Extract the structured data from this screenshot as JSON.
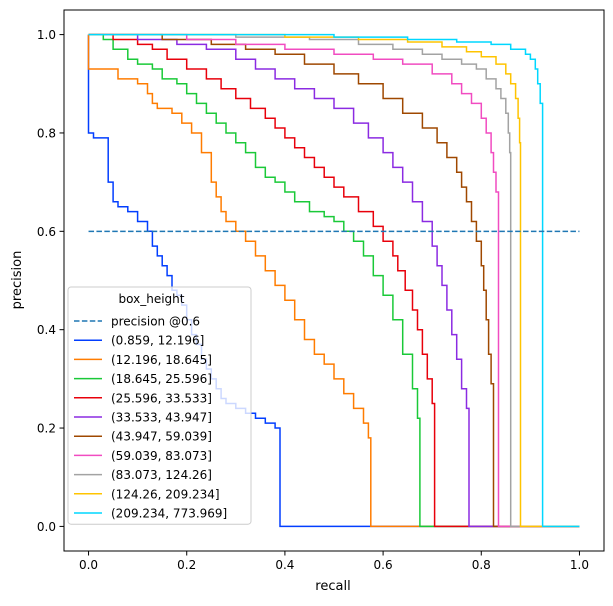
{
  "chart_data": {
    "type": "line",
    "title": "",
    "xlabel": "recall",
    "ylabel": "precision",
    "xlim": [
      -0.05,
      1.05
    ],
    "ylim": [
      -0.05,
      1.05
    ],
    "xticks": [
      "0.0",
      "0.2",
      "0.4",
      "0.6",
      "0.8",
      "1.0"
    ],
    "yticks": [
      "0.0",
      "0.2",
      "0.4",
      "0.6",
      "0.8",
      "1.0"
    ],
    "grid": false,
    "legend": {
      "title": "box_height",
      "placement": "lower-left"
    },
    "reference_line": {
      "name": "precision @0.6",
      "y": 0.6,
      "x_range": [
        0,
        1
      ],
      "color": "#1f77b4",
      "style": "dashed"
    },
    "series": [
      {
        "name": "(0.859, 12.196]",
        "color": "#023eff",
        "points": [
          [
            0,
            1.0
          ],
          [
            0,
            0.8
          ],
          [
            0.01,
            0.8
          ],
          [
            0.01,
            0.79
          ],
          [
            0.04,
            0.79
          ],
          [
            0.04,
            0.7
          ],
          [
            0.05,
            0.7
          ],
          [
            0.05,
            0.66
          ],
          [
            0.06,
            0.66
          ],
          [
            0.06,
            0.65
          ],
          [
            0.08,
            0.64
          ],
          [
            0.1,
            0.62
          ],
          [
            0.12,
            0.6
          ],
          [
            0.13,
            0.57
          ],
          [
            0.14,
            0.55
          ],
          [
            0.15,
            0.53
          ],
          [
            0.16,
            0.51
          ],
          [
            0.17,
            0.48
          ],
          [
            0.18,
            0.47
          ],
          [
            0.19,
            0.45
          ],
          [
            0.2,
            0.42
          ],
          [
            0.21,
            0.39
          ],
          [
            0.22,
            0.37
          ],
          [
            0.23,
            0.34
          ],
          [
            0.24,
            0.32
          ],
          [
            0.25,
            0.3
          ],
          [
            0.26,
            0.28
          ],
          [
            0.27,
            0.26
          ],
          [
            0.28,
            0.25
          ],
          [
            0.3,
            0.24
          ],
          [
            0.32,
            0.23
          ],
          [
            0.34,
            0.22
          ],
          [
            0.36,
            0.21
          ],
          [
            0.38,
            0.2
          ],
          [
            0.39,
            0.19
          ],
          [
            0.39,
            0.0
          ],
          [
            1.0,
            0.0
          ]
        ]
      },
      {
        "name": "(12.196, 18.645]",
        "color": "#ff7c00",
        "points": [
          [
            0,
            1.0
          ],
          [
            0,
            0.93
          ],
          [
            0.06,
            0.93
          ],
          [
            0.06,
            0.91
          ],
          [
            0.1,
            0.9
          ],
          [
            0.12,
            0.88
          ],
          [
            0.13,
            0.86
          ],
          [
            0.14,
            0.85
          ],
          [
            0.17,
            0.84
          ],
          [
            0.19,
            0.82
          ],
          [
            0.21,
            0.8
          ],
          [
            0.23,
            0.76
          ],
          [
            0.25,
            0.7
          ],
          [
            0.26,
            0.67
          ],
          [
            0.27,
            0.64
          ],
          [
            0.28,
            0.62
          ],
          [
            0.3,
            0.6
          ],
          [
            0.32,
            0.58
          ],
          [
            0.34,
            0.55
          ],
          [
            0.36,
            0.52
          ],
          [
            0.38,
            0.49
          ],
          [
            0.4,
            0.46
          ],
          [
            0.42,
            0.42
          ],
          [
            0.44,
            0.38
          ],
          [
            0.46,
            0.35
          ],
          [
            0.48,
            0.33
          ],
          [
            0.5,
            0.3
          ],
          [
            0.52,
            0.27
          ],
          [
            0.54,
            0.24
          ],
          [
            0.56,
            0.21
          ],
          [
            0.57,
            0.18
          ],
          [
            0.575,
            0.16
          ],
          [
            0.575,
            0.0
          ],
          [
            1.0,
            0.0
          ]
        ]
      },
      {
        "name": "(18.645, 25.596]",
        "color": "#1ac938",
        "points": [
          [
            0,
            1.0
          ],
          [
            0.03,
            0.99
          ],
          [
            0.05,
            0.97
          ],
          [
            0.08,
            0.95
          ],
          [
            0.1,
            0.94
          ],
          [
            0.13,
            0.93
          ],
          [
            0.15,
            0.91
          ],
          [
            0.18,
            0.9
          ],
          [
            0.2,
            0.88
          ],
          [
            0.22,
            0.86
          ],
          [
            0.24,
            0.84
          ],
          [
            0.26,
            0.82
          ],
          [
            0.28,
            0.8
          ],
          [
            0.3,
            0.78
          ],
          [
            0.32,
            0.76
          ],
          [
            0.34,
            0.73
          ],
          [
            0.36,
            0.71
          ],
          [
            0.38,
            0.7
          ],
          [
            0.4,
            0.68
          ],
          [
            0.42,
            0.66
          ],
          [
            0.45,
            0.64
          ],
          [
            0.48,
            0.63
          ],
          [
            0.5,
            0.62
          ],
          [
            0.52,
            0.6
          ],
          [
            0.54,
            0.58
          ],
          [
            0.56,
            0.55
          ],
          [
            0.58,
            0.51
          ],
          [
            0.6,
            0.47
          ],
          [
            0.62,
            0.42
          ],
          [
            0.64,
            0.35
          ],
          [
            0.66,
            0.28
          ],
          [
            0.67,
            0.22
          ],
          [
            0.675,
            0.17
          ],
          [
            0.675,
            0.0
          ],
          [
            1.0,
            0.0
          ]
        ]
      },
      {
        "name": "(25.596, 33.533]",
        "color": "#e8000b",
        "points": [
          [
            0,
            1.0
          ],
          [
            0.05,
            0.99
          ],
          [
            0.1,
            0.98
          ],
          [
            0.13,
            0.97
          ],
          [
            0.16,
            0.95
          ],
          [
            0.2,
            0.93
          ],
          [
            0.24,
            0.91
          ],
          [
            0.27,
            0.89
          ],
          [
            0.3,
            0.87
          ],
          [
            0.33,
            0.85
          ],
          [
            0.36,
            0.83
          ],
          [
            0.38,
            0.81
          ],
          [
            0.4,
            0.79
          ],
          [
            0.42,
            0.77
          ],
          [
            0.44,
            0.75
          ],
          [
            0.46,
            0.73
          ],
          [
            0.48,
            0.71
          ],
          [
            0.5,
            0.69
          ],
          [
            0.52,
            0.67
          ],
          [
            0.55,
            0.64
          ],
          [
            0.58,
            0.61
          ],
          [
            0.6,
            0.58
          ],
          [
            0.62,
            0.55
          ],
          [
            0.63,
            0.52
          ],
          [
            0.645,
            0.48
          ],
          [
            0.66,
            0.44
          ],
          [
            0.67,
            0.4
          ],
          [
            0.68,
            0.35
          ],
          [
            0.69,
            0.3
          ],
          [
            0.7,
            0.25
          ],
          [
            0.705,
            0.21
          ],
          [
            0.705,
            0.0
          ],
          [
            1.0,
            0.0
          ]
        ]
      },
      {
        "name": "(33.533, 43.947]",
        "color": "#8b2be2",
        "points": [
          [
            0,
            1.0
          ],
          [
            0.1,
            0.99
          ],
          [
            0.18,
            0.98
          ],
          [
            0.24,
            0.97
          ],
          [
            0.3,
            0.95
          ],
          [
            0.34,
            0.93
          ],
          [
            0.38,
            0.91
          ],
          [
            0.42,
            0.89
          ],
          [
            0.46,
            0.87
          ],
          [
            0.5,
            0.85
          ],
          [
            0.54,
            0.82
          ],
          [
            0.57,
            0.79
          ],
          [
            0.6,
            0.76
          ],
          [
            0.62,
            0.73
          ],
          [
            0.64,
            0.7
          ],
          [
            0.66,
            0.66
          ],
          [
            0.68,
            0.62
          ],
          [
            0.7,
            0.57
          ],
          [
            0.71,
            0.53
          ],
          [
            0.72,
            0.49
          ],
          [
            0.73,
            0.44
          ],
          [
            0.74,
            0.39
          ],
          [
            0.75,
            0.34
          ],
          [
            0.76,
            0.28
          ],
          [
            0.77,
            0.24
          ],
          [
            0.775,
            0.21
          ],
          [
            0.775,
            0.0
          ],
          [
            1.0,
            0.0
          ]
        ]
      },
      {
        "name": "(43.947, 59.039]",
        "color": "#9f4800",
        "points": [
          [
            0,
            1.0
          ],
          [
            0.15,
            0.99
          ],
          [
            0.25,
            0.98
          ],
          [
            0.32,
            0.97
          ],
          [
            0.38,
            0.96
          ],
          [
            0.44,
            0.94
          ],
          [
            0.5,
            0.92
          ],
          [
            0.55,
            0.9
          ],
          [
            0.6,
            0.87
          ],
          [
            0.64,
            0.84
          ],
          [
            0.68,
            0.81
          ],
          [
            0.71,
            0.78
          ],
          [
            0.73,
            0.75
          ],
          [
            0.75,
            0.72
          ],
          [
            0.76,
            0.69
          ],
          [
            0.77,
            0.66
          ],
          [
            0.78,
            0.62
          ],
          [
            0.79,
            0.58
          ],
          [
            0.8,
            0.53
          ],
          [
            0.805,
            0.48
          ],
          [
            0.81,
            0.42
          ],
          [
            0.815,
            0.35
          ],
          [
            0.82,
            0.29
          ],
          [
            0.825,
            0.22
          ],
          [
            0.825,
            0.0
          ],
          [
            1.0,
            0.0
          ]
        ]
      },
      {
        "name": "(59.039, 83.073]",
        "color": "#f14cc1",
        "points": [
          [
            0,
            1.0
          ],
          [
            0.2,
            0.99
          ],
          [
            0.3,
            0.98
          ],
          [
            0.4,
            0.97
          ],
          [
            0.5,
            0.96
          ],
          [
            0.58,
            0.95
          ],
          [
            0.64,
            0.94
          ],
          [
            0.7,
            0.92
          ],
          [
            0.74,
            0.9
          ],
          [
            0.76,
            0.88
          ],
          [
            0.78,
            0.86
          ],
          [
            0.8,
            0.83
          ],
          [
            0.81,
            0.8
          ],
          [
            0.82,
            0.76
          ],
          [
            0.825,
            0.72
          ],
          [
            0.83,
            0.68
          ],
          [
            0.835,
            0.62
          ],
          [
            0.835,
            0.0
          ],
          [
            1.0,
            0.0
          ]
        ]
      },
      {
        "name": "(83.073, 124.26]",
        "color": "#a3a3a3",
        "points": [
          [
            0,
            1.0
          ],
          [
            0.3,
            0.995
          ],
          [
            0.45,
            0.99
          ],
          [
            0.55,
            0.98
          ],
          [
            0.62,
            0.97
          ],
          [
            0.68,
            0.96
          ],
          [
            0.72,
            0.95
          ],
          [
            0.76,
            0.94
          ],
          [
            0.79,
            0.93
          ],
          [
            0.81,
            0.91
          ],
          [
            0.83,
            0.89
          ],
          [
            0.84,
            0.87
          ],
          [
            0.85,
            0.84
          ],
          [
            0.855,
            0.8
          ],
          [
            0.858,
            0.76
          ],
          [
            0.86,
            0.7
          ],
          [
            0.86,
            0.0
          ],
          [
            1.0,
            0.0
          ]
        ]
      },
      {
        "name": "(124.26, 209.234]",
        "color": "#ffc400",
        "points": [
          [
            0,
            1.0
          ],
          [
            0.4,
            0.995
          ],
          [
            0.55,
            0.99
          ],
          [
            0.65,
            0.985
          ],
          [
            0.72,
            0.975
          ],
          [
            0.77,
            0.965
          ],
          [
            0.8,
            0.955
          ],
          [
            0.83,
            0.94
          ],
          [
            0.85,
            0.92
          ],
          [
            0.86,
            0.9
          ],
          [
            0.87,
            0.87
          ],
          [
            0.875,
            0.83
          ],
          [
            0.878,
            0.78
          ],
          [
            0.88,
            0.74
          ],
          [
            0.88,
            0.0
          ],
          [
            1.0,
            0.0
          ]
        ]
      },
      {
        "name": "(209.234, 773.969]",
        "color": "#00d7ff",
        "points": [
          [
            0,
            1.0
          ],
          [
            0.5,
            0.995
          ],
          [
            0.65,
            0.99
          ],
          [
            0.75,
            0.985
          ],
          [
            0.82,
            0.98
          ],
          [
            0.86,
            0.97
          ],
          [
            0.89,
            0.96
          ],
          [
            0.9,
            0.95
          ],
          [
            0.91,
            0.93
          ],
          [
            0.915,
            0.9
          ],
          [
            0.92,
            0.86
          ],
          [
            0.925,
            0.8
          ],
          [
            0.925,
            0.0
          ],
          [
            1.0,
            0.0
          ]
        ]
      }
    ]
  }
}
